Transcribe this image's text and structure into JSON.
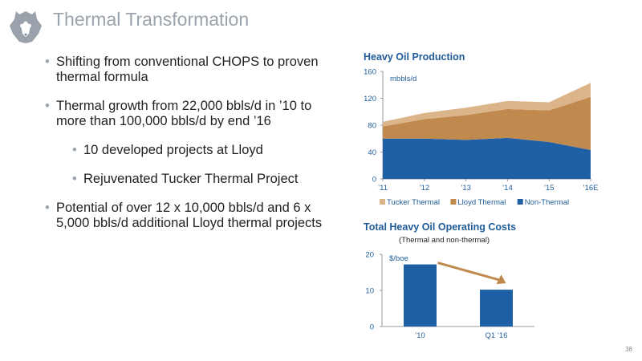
{
  "slide": {
    "title": "Thermal Transformation",
    "page_number": "38",
    "bullets": [
      {
        "level": 1,
        "text": "Shifting from conventional CHOPS to proven thermal formula"
      },
      {
        "level": 1,
        "text": "Thermal growth from 22,000 bbls/d in ’10 to more than 100,000 bbls/d by end ’16"
      },
      {
        "level": 2,
        "text": "10 developed projects at Lloyd"
      },
      {
        "level": 2,
        "text": "Rejuvenated Tucker Thermal Project"
      },
      {
        "level": 1,
        "text": "Potential of over 12 x 10,000 bbls/d and 6 x 5,000 bbls/d additional Lloyd thermal projects"
      }
    ]
  },
  "colors": {
    "title_gray": "#9aa3ab",
    "chart_blue": "#1f5c99",
    "non_thermal": "#1f5fa6",
    "lloyd_thermal": "#c08a4f",
    "tucker_thermal": "#dcb48a",
    "arrow": "#c08a4f"
  },
  "chart_data": [
    {
      "type": "area",
      "stacked": true,
      "title": "Heavy Oil Production",
      "ylabel": "mbbls/d",
      "categories": [
        "’11",
        "’12",
        "’13",
        "’14",
        "’15",
        "’16E"
      ],
      "yticks": [
        "0",
        "40",
        "80",
        "120",
        "160"
      ],
      "ylim": [
        0,
        160
      ],
      "legend_position": "bottom",
      "series": [
        {
          "name": "Non-Thermal",
          "values": [
            60,
            60,
            58,
            61,
            55,
            43
          ]
        },
        {
          "name": "Lloyd Thermal",
          "values": [
            18,
            29,
            37,
            43,
            47,
            79
          ]
        },
        {
          "name": "Tucker Thermal",
          "values": [
            7,
            9,
            11,
            12,
            12,
            21
          ]
        }
      ],
      "legend": [
        "Tucker Thermal",
        "Lloyd Thermal",
        "Non-Thermal"
      ]
    },
    {
      "type": "bar",
      "title": "Total Heavy Oil Operating Costs",
      "subtitle": "(Thermal and non-thermal)",
      "ylabel": "$/boe",
      "categories": [
        "’10",
        "Q1 ’16"
      ],
      "values": [
        17.2,
        10.2
      ],
      "yticks": [
        "0",
        "10",
        "20"
      ],
      "ylim": [
        0,
        20
      ],
      "annotation": "downward arrow from first bar to second bar"
    }
  ]
}
